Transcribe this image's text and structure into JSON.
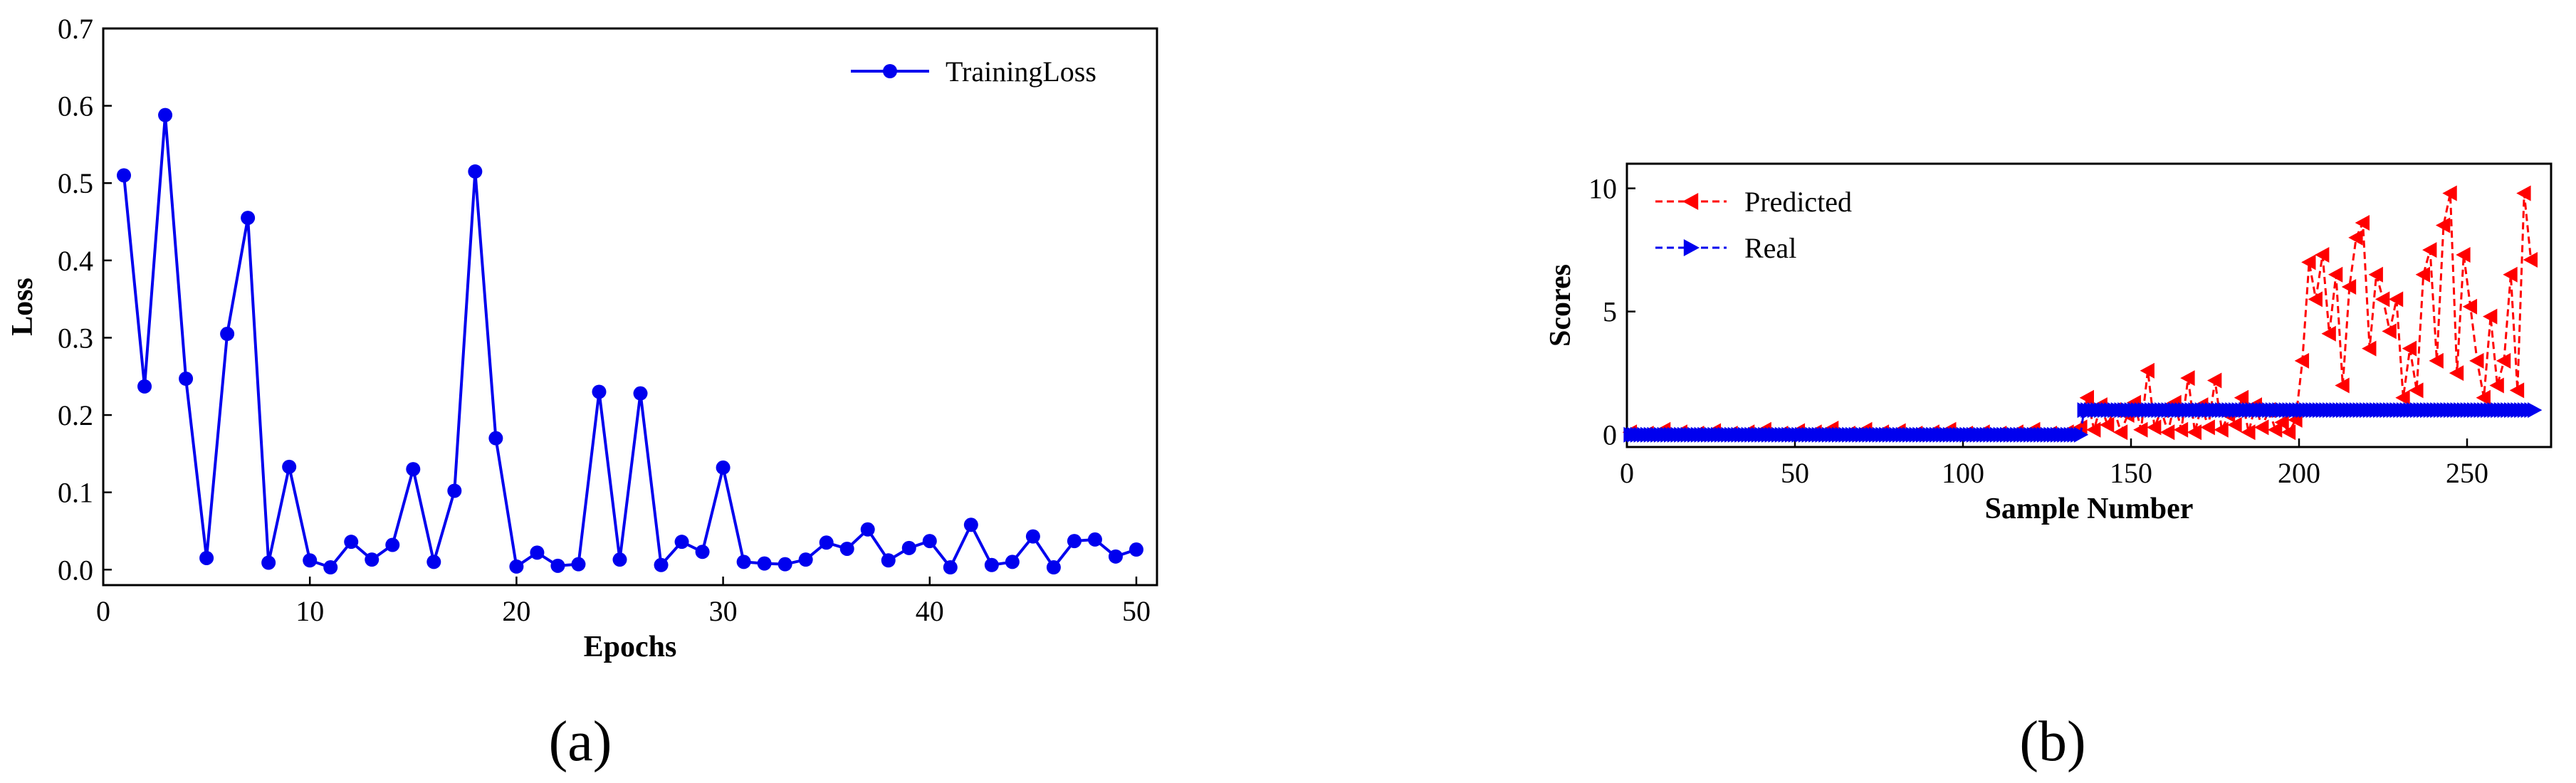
{
  "figure": {
    "panel_labels": [
      "(a)",
      "(b)"
    ]
  },
  "chart_data": [
    {
      "type": "line",
      "panel": "(a)",
      "title": "",
      "xlabel": "Epochs",
      "ylabel": "Loss",
      "xlim": [
        0,
        51
      ],
      "ylim": [
        -0.02,
        0.7
      ],
      "xticks": [
        0,
        10,
        20,
        30,
        40,
        50
      ],
      "yticks": [
        0.0,
        0.1,
        0.2,
        0.3,
        0.4,
        0.5,
        0.6,
        0.7
      ],
      "xtick_labels": [
        "0",
        "10",
        "20",
        "30",
        "40",
        "50"
      ],
      "ytick_labels": [
        "0.0",
        "0.1",
        "0.2",
        "0.3",
        "0.4",
        "0.5",
        "0.6",
        "0.7"
      ],
      "legend_position": "top-right",
      "grid": false,
      "series": [
        {
          "name": "TrainingLoss",
          "color": "#0000ee",
          "marker": "circle",
          "x": [
            1,
            2,
            3,
            4,
            5,
            6,
            7,
            8,
            9,
            10,
            11,
            12,
            13,
            14,
            15,
            16,
            17,
            18,
            19,
            20,
            21,
            22,
            23,
            24,
            25,
            26,
            27,
            28,
            29,
            30,
            31,
            32,
            33,
            34,
            35,
            36,
            37,
            38,
            39,
            40,
            41,
            42,
            43,
            44,
            45,
            46,
            47,
            48,
            49,
            50
          ],
          "y": [
            0.51,
            0.237,
            0.588,
            0.247,
            0.015,
            0.305,
            0.455,
            0.009,
            0.133,
            0.012,
            0.003,
            0.036,
            0.013,
            0.032,
            0.13,
            0.01,
            0.102,
            0.515,
            0.17,
            0.004,
            0.022,
            0.005,
            0.007,
            0.23,
            0.013,
            0.228,
            0.006,
            0.036,
            0.023,
            0.132,
            0.01,
            0.008,
            0.007,
            0.013,
            0.035,
            0.027,
            0.052,
            0.012,
            0.028,
            0.037,
            0.003,
            0.058,
            0.006,
            0.01,
            0.043,
            0.003,
            0.037,
            0.039,
            0.017,
            0.026
          ]
        }
      ]
    },
    {
      "type": "line",
      "panel": "(b)",
      "title": "",
      "xlabel": "Sample Number",
      "ylabel": "Scores",
      "xlim": [
        0,
        275
      ],
      "ylim": [
        -0.5,
        11
      ],
      "xticks": [
        0,
        50,
        100,
        150,
        200,
        250
      ],
      "yticks": [
        0,
        5,
        10
      ],
      "xtick_labels": [
        "0",
        "50",
        "100",
        "150",
        "200",
        "250"
      ],
      "ytick_labels": [
        "0",
        "5",
        "10"
      ],
      "legend_position": "top-left",
      "grid": false,
      "series": [
        {
          "name": "Predicted",
          "color": "#ff0000",
          "marker": "triangle-left",
          "linestyle": "dashed",
          "x": [
            1,
            6,
            11,
            16,
            21,
            26,
            31,
            36,
            41,
            46,
            51,
            56,
            61,
            66,
            71,
            76,
            81,
            86,
            91,
            96,
            101,
            106,
            111,
            116,
            121,
            126,
            131,
            135,
            137,
            139,
            141,
            143,
            145,
            147,
            149,
            151,
            153,
            155,
            157,
            159,
            161,
            163,
            165,
            167,
            169,
            171,
            173,
            175,
            177,
            179,
            181,
            183,
            185,
            187,
            189,
            191,
            193,
            195,
            197,
            199,
            201,
            203,
            205,
            207,
            209,
            211,
            213,
            215,
            217,
            219,
            221,
            223,
            225,
            227,
            229,
            231,
            233,
            235,
            237,
            239,
            241,
            243,
            245,
            247,
            249,
            251,
            253,
            255,
            257,
            259,
            261,
            263,
            265,
            267,
            269
          ],
          "y": [
            0.1,
            0.05,
            0.2,
            0.1,
            0.05,
            0.15,
            0.05,
            0.1,
            0.2,
            0.05,
            0.15,
            0.1,
            0.25,
            0.05,
            0.2,
            0.1,
            0.15,
            0.05,
            0.1,
            0.2,
            0.05,
            0.1,
            0.05,
            0.1,
            0.2,
            0.05,
            0.1,
            0.3,
            1.5,
            0.2,
            1.2,
            0.4,
            1.0,
            0.1,
            0.8,
            1.3,
            0.2,
            2.6,
            0.3,
            1.0,
            0.1,
            1.3,
            0.2,
            2.3,
            0.1,
            1.2,
            0.3,
            2.2,
            0.2,
            0.8,
            0.4,
            1.5,
            0.1,
            1.2,
            0.3,
            1.0,
            0.2,
            0.5,
            0.1,
            0.6,
            3.0,
            7.0,
            5.5,
            7.3,
            4.1,
            6.5,
            2.0,
            6.0,
            8.0,
            8.6,
            3.5,
            6.5,
            5.5,
            4.2,
            5.5,
            1.5,
            3.5,
            1.8,
            6.5,
            7.5,
            3.0,
            8.5,
            9.8,
            2.5,
            7.3,
            5.2,
            3.0,
            1.5,
            4.8,
            2.0,
            3.0,
            6.5,
            1.8,
            9.8,
            7.1
          ]
        },
        {
          "name": "Real",
          "color": "#0000ee",
          "marker": "triangle-right",
          "linestyle": "dashed",
          "segments": [
            {
              "x_start": 1,
              "x_end": 135,
              "y": 0
            },
            {
              "x_start": 136,
              "x_end": 270,
              "y": 1
            }
          ]
        }
      ]
    }
  ]
}
